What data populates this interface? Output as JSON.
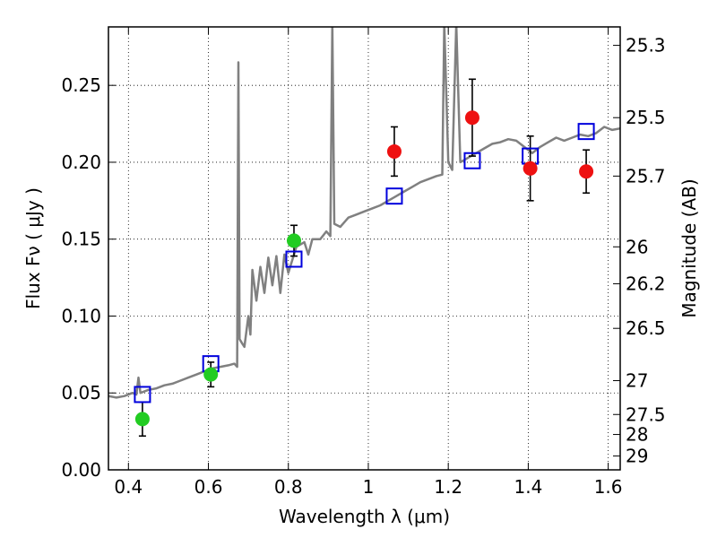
{
  "chart_data": {
    "type": "scatter",
    "xlabel": "Wavelength  λ (μm)",
    "ylabel": "Flux  Fν  ( μJy )",
    "y2label": "Magnitude (AB)",
    "xlim": [
      0.35,
      1.63
    ],
    "ylim": [
      0.0,
      0.288
    ],
    "grid": true,
    "x_ticks": [
      0.4,
      0.6,
      0.8,
      1.0,
      1.2,
      1.4,
      1.6
    ],
    "x_tick_labels": [
      "0.4",
      "0.6",
      "0.8",
      "1",
      "1.2",
      "1.4",
      "1.6"
    ],
    "y_ticks": [
      0.0,
      0.05,
      0.1,
      0.15,
      0.2,
      0.25
    ],
    "y_tick_labels": [
      "0.00",
      "0.05",
      "0.10",
      "0.15",
      "0.20",
      "0.25"
    ],
    "y2_ticks": [
      {
        "label": "25.3",
        "flux": 0.276
      },
      {
        "label": "25.5",
        "flux": 0.229
      },
      {
        "label": "25.7",
        "flux": 0.191
      },
      {
        "label": "26",
        "flux": 0.145
      },
      {
        "label": "26.2",
        "flux": 0.121
      },
      {
        "label": "26.5",
        "flux": 0.092
      },
      {
        "label": "27",
        "flux": 0.058
      },
      {
        "label": "27.5",
        "flux": 0.036
      },
      {
        "label": "28",
        "flux": 0.023
      },
      {
        "label": "29",
        "flux": 0.009
      }
    ],
    "colors": {
      "spectrum": "#808080",
      "green_points": "#22cc22",
      "red_points": "#ee1111",
      "model_boxes": "#0000dd",
      "errorbars": "#000000"
    },
    "series": [
      {
        "kind": "green_points",
        "points": [
          {
            "x": 0.435,
            "y": 0.033,
            "err": 0.011
          },
          {
            "x": 0.606,
            "y": 0.062,
            "err": 0.008
          },
          {
            "x": 0.814,
            "y": 0.149,
            "err": 0.01
          }
        ]
      },
      {
        "kind": "red_points",
        "points": [
          {
            "x": 1.065,
            "y": 0.207,
            "err": 0.016
          },
          {
            "x": 1.26,
            "y": 0.229,
            "err": 0.025
          },
          {
            "x": 1.405,
            "y": 0.196,
            "err": 0.021
          },
          {
            "x": 1.545,
            "y": 0.194,
            "err": 0.014
          }
        ]
      },
      {
        "kind": "model_boxes",
        "points": [
          {
            "x": 0.435,
            "y": 0.049
          },
          {
            "x": 0.606,
            "y": 0.069
          },
          {
            "x": 0.814,
            "y": 0.137
          },
          {
            "x": 1.065,
            "y": 0.178
          },
          {
            "x": 1.26,
            "y": 0.201
          },
          {
            "x": 1.405,
            "y": 0.204
          },
          {
            "x": 1.545,
            "y": 0.22
          }
        ]
      },
      {
        "kind": "spectrum",
        "points": [
          [
            0.35,
            0.048
          ],
          [
            0.37,
            0.047
          ],
          [
            0.39,
            0.048
          ],
          [
            0.41,
            0.05
          ],
          [
            0.42,
            0.049
          ],
          [
            0.425,
            0.06
          ],
          [
            0.43,
            0.05
          ],
          [
            0.45,
            0.052
          ],
          [
            0.47,
            0.053
          ],
          [
            0.49,
            0.055
          ],
          [
            0.51,
            0.056
          ],
          [
            0.53,
            0.058
          ],
          [
            0.55,
            0.06
          ],
          [
            0.57,
            0.062
          ],
          [
            0.59,
            0.064
          ],
          [
            0.61,
            0.066
          ],
          [
            0.63,
            0.067
          ],
          [
            0.65,
            0.068
          ],
          [
            0.665,
            0.069
          ],
          [
            0.672,
            0.067
          ],
          [
            0.675,
            0.265
          ],
          [
            0.678,
            0.085
          ],
          [
            0.685,
            0.082
          ],
          [
            0.69,
            0.08
          ],
          [
            0.7,
            0.1
          ],
          [
            0.705,
            0.088
          ],
          [
            0.71,
            0.13
          ],
          [
            0.72,
            0.11
          ],
          [
            0.73,
            0.132
          ],
          [
            0.74,
            0.115
          ],
          [
            0.75,
            0.138
          ],
          [
            0.76,
            0.12
          ],
          [
            0.77,
            0.139
          ],
          [
            0.78,
            0.115
          ],
          [
            0.79,
            0.14
          ],
          [
            0.8,
            0.128
          ],
          [
            0.82,
            0.145
          ],
          [
            0.84,
            0.148
          ],
          [
            0.85,
            0.14
          ],
          [
            0.86,
            0.15
          ],
          [
            0.88,
            0.15
          ],
          [
            0.895,
            0.155
          ],
          [
            0.905,
            0.152
          ],
          [
            0.91,
            0.29
          ],
          [
            0.915,
            0.16
          ],
          [
            0.93,
            0.158
          ],
          [
            0.95,
            0.164
          ],
          [
            0.97,
            0.166
          ],
          [
            0.99,
            0.168
          ],
          [
            1.01,
            0.17
          ],
          [
            1.03,
            0.172
          ],
          [
            1.05,
            0.175
          ],
          [
            1.07,
            0.178
          ],
          [
            1.09,
            0.181
          ],
          [
            1.11,
            0.184
          ],
          [
            1.13,
            0.187
          ],
          [
            1.15,
            0.189
          ],
          [
            1.17,
            0.191
          ],
          [
            1.185,
            0.192
          ],
          [
            1.19,
            0.29
          ],
          [
            1.2,
            0.2
          ],
          [
            1.21,
            0.195
          ],
          [
            1.22,
            0.29
          ],
          [
            1.23,
            0.2
          ],
          [
            1.25,
            0.203
          ],
          [
            1.27,
            0.206
          ],
          [
            1.29,
            0.209
          ],
          [
            1.31,
            0.212
          ],
          [
            1.33,
            0.213
          ],
          [
            1.35,
            0.215
          ],
          [
            1.37,
            0.214
          ],
          [
            1.39,
            0.21
          ],
          [
            1.41,
            0.206
          ],
          [
            1.43,
            0.21
          ],
          [
            1.45,
            0.213
          ],
          [
            1.47,
            0.216
          ],
          [
            1.49,
            0.214
          ],
          [
            1.51,
            0.216
          ],
          [
            1.53,
            0.218
          ],
          [
            1.55,
            0.217
          ],
          [
            1.57,
            0.219
          ],
          [
            1.59,
            0.223
          ],
          [
            1.61,
            0.221
          ],
          [
            1.63,
            0.222
          ]
        ]
      }
    ]
  }
}
